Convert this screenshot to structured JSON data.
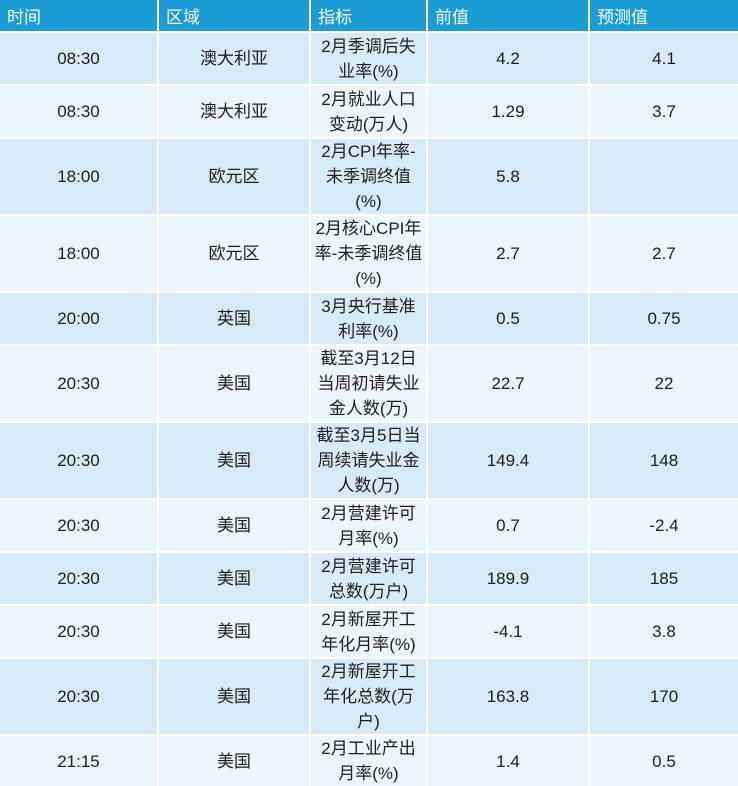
{
  "table": {
    "columns": [
      {
        "key": "time",
        "label": "时间"
      },
      {
        "key": "region",
        "label": "区域"
      },
      {
        "key": "indicator",
        "label": "指标"
      },
      {
        "key": "previous",
        "label": "前值"
      },
      {
        "key": "forecast",
        "label": "预测值"
      }
    ],
    "rows": [
      {
        "time": "08:30",
        "region": "澳大利亚",
        "indicator": "2月季调后失业率(%)",
        "previous": "4.2",
        "forecast": "4.1"
      },
      {
        "time": "08:30",
        "region": "澳大利亚",
        "indicator": "2月就业人口变动(万人)",
        "previous": "1.29",
        "forecast": "3.7"
      },
      {
        "time": "18:00",
        "region": "欧元区",
        "indicator": "2月CPI年率-未季调终值(%)",
        "previous": "5.8",
        "forecast": ""
      },
      {
        "time": "18:00",
        "region": "欧元区",
        "indicator": "2月核心CPI年率-未季调终值(%)",
        "previous": "2.7",
        "forecast": "2.7"
      },
      {
        "time": "20:00",
        "region": "英国",
        "indicator": "3月央行基准利率(%)",
        "previous": "0.5",
        "forecast": "0.75"
      },
      {
        "time": "20:30",
        "region": "美国",
        "indicator": "截至3月12日当周初请失业金人数(万)",
        "previous": "22.7",
        "forecast": "22"
      },
      {
        "time": "20:30",
        "region": "美国",
        "indicator": "截至3月5日当周续请失业金人数(万)",
        "previous": "149.4",
        "forecast": "148"
      },
      {
        "time": "20:30",
        "region": "美国",
        "indicator": "2月营建许可月率(%)",
        "previous": "0.7",
        "forecast": "-2.4"
      },
      {
        "time": "20:30",
        "region": "美国",
        "indicator": "2月营建许可总数(万户)",
        "previous": "189.9",
        "forecast": "185"
      },
      {
        "time": "20:30",
        "region": "美国",
        "indicator": "2月新屋开工年化月率(%)",
        "previous": "-4.1",
        "forecast": "3.8"
      },
      {
        "time": "20:30",
        "region": "美国",
        "indicator": "2月新屋开工年化总数(万户)",
        "previous": "163.8",
        "forecast": "170"
      },
      {
        "time": "21:15",
        "region": "美国",
        "indicator": "2月工业产出月率(%)",
        "previous": "1.4",
        "forecast": "0.5"
      }
    ]
  },
  "colors": {
    "header_bg": "#1B9CD5",
    "header_text": "#FFFFFF",
    "row_odd_bg": "#D8EAF5",
    "row_even_bg": "#EDF6FB",
    "separator": "#FFFFFF",
    "body_text": "#1E1E1E"
  }
}
